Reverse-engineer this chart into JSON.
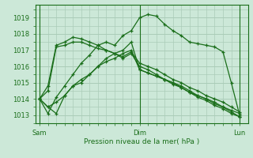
{
  "bg_color": "#cce8d8",
  "grid_color": "#aaccb8",
  "line_color": "#1a6e1a",
  "ylim": [
    1012.5,
    1019.8
  ],
  "yticks": [
    1013,
    1014,
    1015,
    1016,
    1017,
    1018,
    1019
  ],
  "xtick_labels": [
    "Sam",
    "Dim",
    "Lun"
  ],
  "xtick_positions": [
    0,
    24,
    48
  ],
  "xlabel": "Pression niveau de la mer( hPa )",
  "xlim": [
    -1,
    50
  ],
  "series": [
    [
      [
        0,
        2,
        4,
        6,
        8,
        10,
        12,
        14,
        16,
        18,
        20,
        22,
        24,
        26,
        28,
        30,
        32,
        34,
        36,
        38,
        40,
        42,
        44,
        46,
        48
      ],
      [
        1014.0,
        1013.1,
        1014.1,
        1014.8,
        1015.5,
        1016.2,
        1016.7,
        1017.3,
        1017.5,
        1017.3,
        1017.9,
        1018.2,
        1019.0,
        1019.2,
        1019.1,
        1018.6,
        1018.2,
        1017.9,
        1017.5,
        1017.4,
        1017.3,
        1017.2,
        1016.9,
        1015.0,
        1013.0
      ]
    ],
    [
      [
        0,
        2,
        4,
        6,
        8,
        10,
        12,
        14,
        16,
        18,
        20,
        22,
        24,
        26,
        28,
        30,
        32,
        34,
        36,
        38,
        40,
        42,
        44,
        46,
        48
      ],
      [
        1014.0,
        1013.5,
        1013.1,
        1014.2,
        1014.8,
        1015.0,
        1015.5,
        1016.0,
        1016.5,
        1016.8,
        1017.0,
        1017.5,
        1015.8,
        1015.6,
        1015.4,
        1015.2,
        1015.0,
        1014.8,
        1014.5,
        1014.2,
        1014.0,
        1013.8,
        1013.5,
        1013.3,
        1013.1
      ]
    ],
    [
      [
        0,
        2,
        4,
        6,
        8,
        10,
        12,
        14,
        16,
        18,
        20,
        22,
        24,
        26,
        28,
        30,
        32,
        34,
        36,
        38,
        40,
        42,
        44,
        46,
        48
      ],
      [
        1014.0,
        1013.5,
        1013.8,
        1014.2,
        1014.8,
        1015.2,
        1015.5,
        1016.0,
        1016.3,
        1016.5,
        1016.8,
        1017.0,
        1015.8,
        1015.6,
        1015.4,
        1015.2,
        1014.9,
        1014.7,
        1014.4,
        1014.2,
        1014.0,
        1013.7,
        1013.5,
        1013.2,
        1012.9
      ]
    ],
    [
      [
        0,
        2,
        4,
        6,
        8,
        10,
        12,
        14,
        16,
        18,
        20,
        22,
        24,
        26,
        28,
        30,
        32,
        34,
        36,
        38,
        40,
        42,
        44,
        46,
        48
      ],
      [
        1014.0,
        1014.5,
        1017.2,
        1017.3,
        1017.5,
        1017.5,
        1017.3,
        1017.1,
        1017.0,
        1016.8,
        1016.5,
        1016.8,
        1016.0,
        1015.8,
        1015.5,
        1015.2,
        1015.0,
        1014.7,
        1014.4,
        1014.1,
        1013.9,
        1013.6,
        1013.4,
        1013.1,
        1012.9
      ]
    ],
    [
      [
        0,
        2,
        4,
        6,
        8,
        10,
        12,
        14,
        16,
        18,
        20,
        22,
        24,
        26,
        28,
        30,
        32,
        34,
        36,
        38,
        40,
        42,
        44,
        46,
        48
      ],
      [
        1014.0,
        1014.8,
        1017.3,
        1017.5,
        1017.8,
        1017.7,
        1017.5,
        1017.3,
        1017.0,
        1016.8,
        1016.6,
        1016.9,
        1016.2,
        1016.0,
        1015.8,
        1015.5,
        1015.2,
        1015.0,
        1014.7,
        1014.5,
        1014.2,
        1014.0,
        1013.8,
        1013.5,
        1013.2
      ]
    ]
  ]
}
